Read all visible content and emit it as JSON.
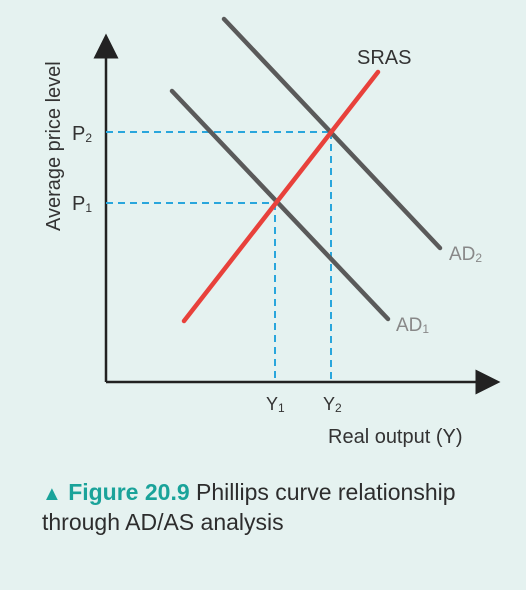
{
  "diagram": {
    "y_axis_label": "Average price level",
    "x_axis_label": "Real output (Y)",
    "price_ticks": [
      {
        "label": "P",
        "sub": "2"
      },
      {
        "label": "P",
        "sub": "1"
      }
    ],
    "output_ticks": [
      {
        "label": "Y",
        "sub": "1"
      },
      {
        "label": "Y",
        "sub": "2"
      }
    ],
    "curves": {
      "sras": {
        "label": "SRAS",
        "color": "#e8413b"
      },
      "ad1": {
        "label": "AD",
        "sub": "1",
        "color": "#5a5a5a"
      },
      "ad2": {
        "label": "AD",
        "sub": "2",
        "color": "#5a5a5a"
      }
    },
    "guide_color": "#29a6dc"
  },
  "caption": {
    "marker": "▲",
    "figure_label": "Figure 20.9",
    "text": "Phillips curve relationship through AD/AS analysis",
    "accent_color": "#1aa39a"
  }
}
